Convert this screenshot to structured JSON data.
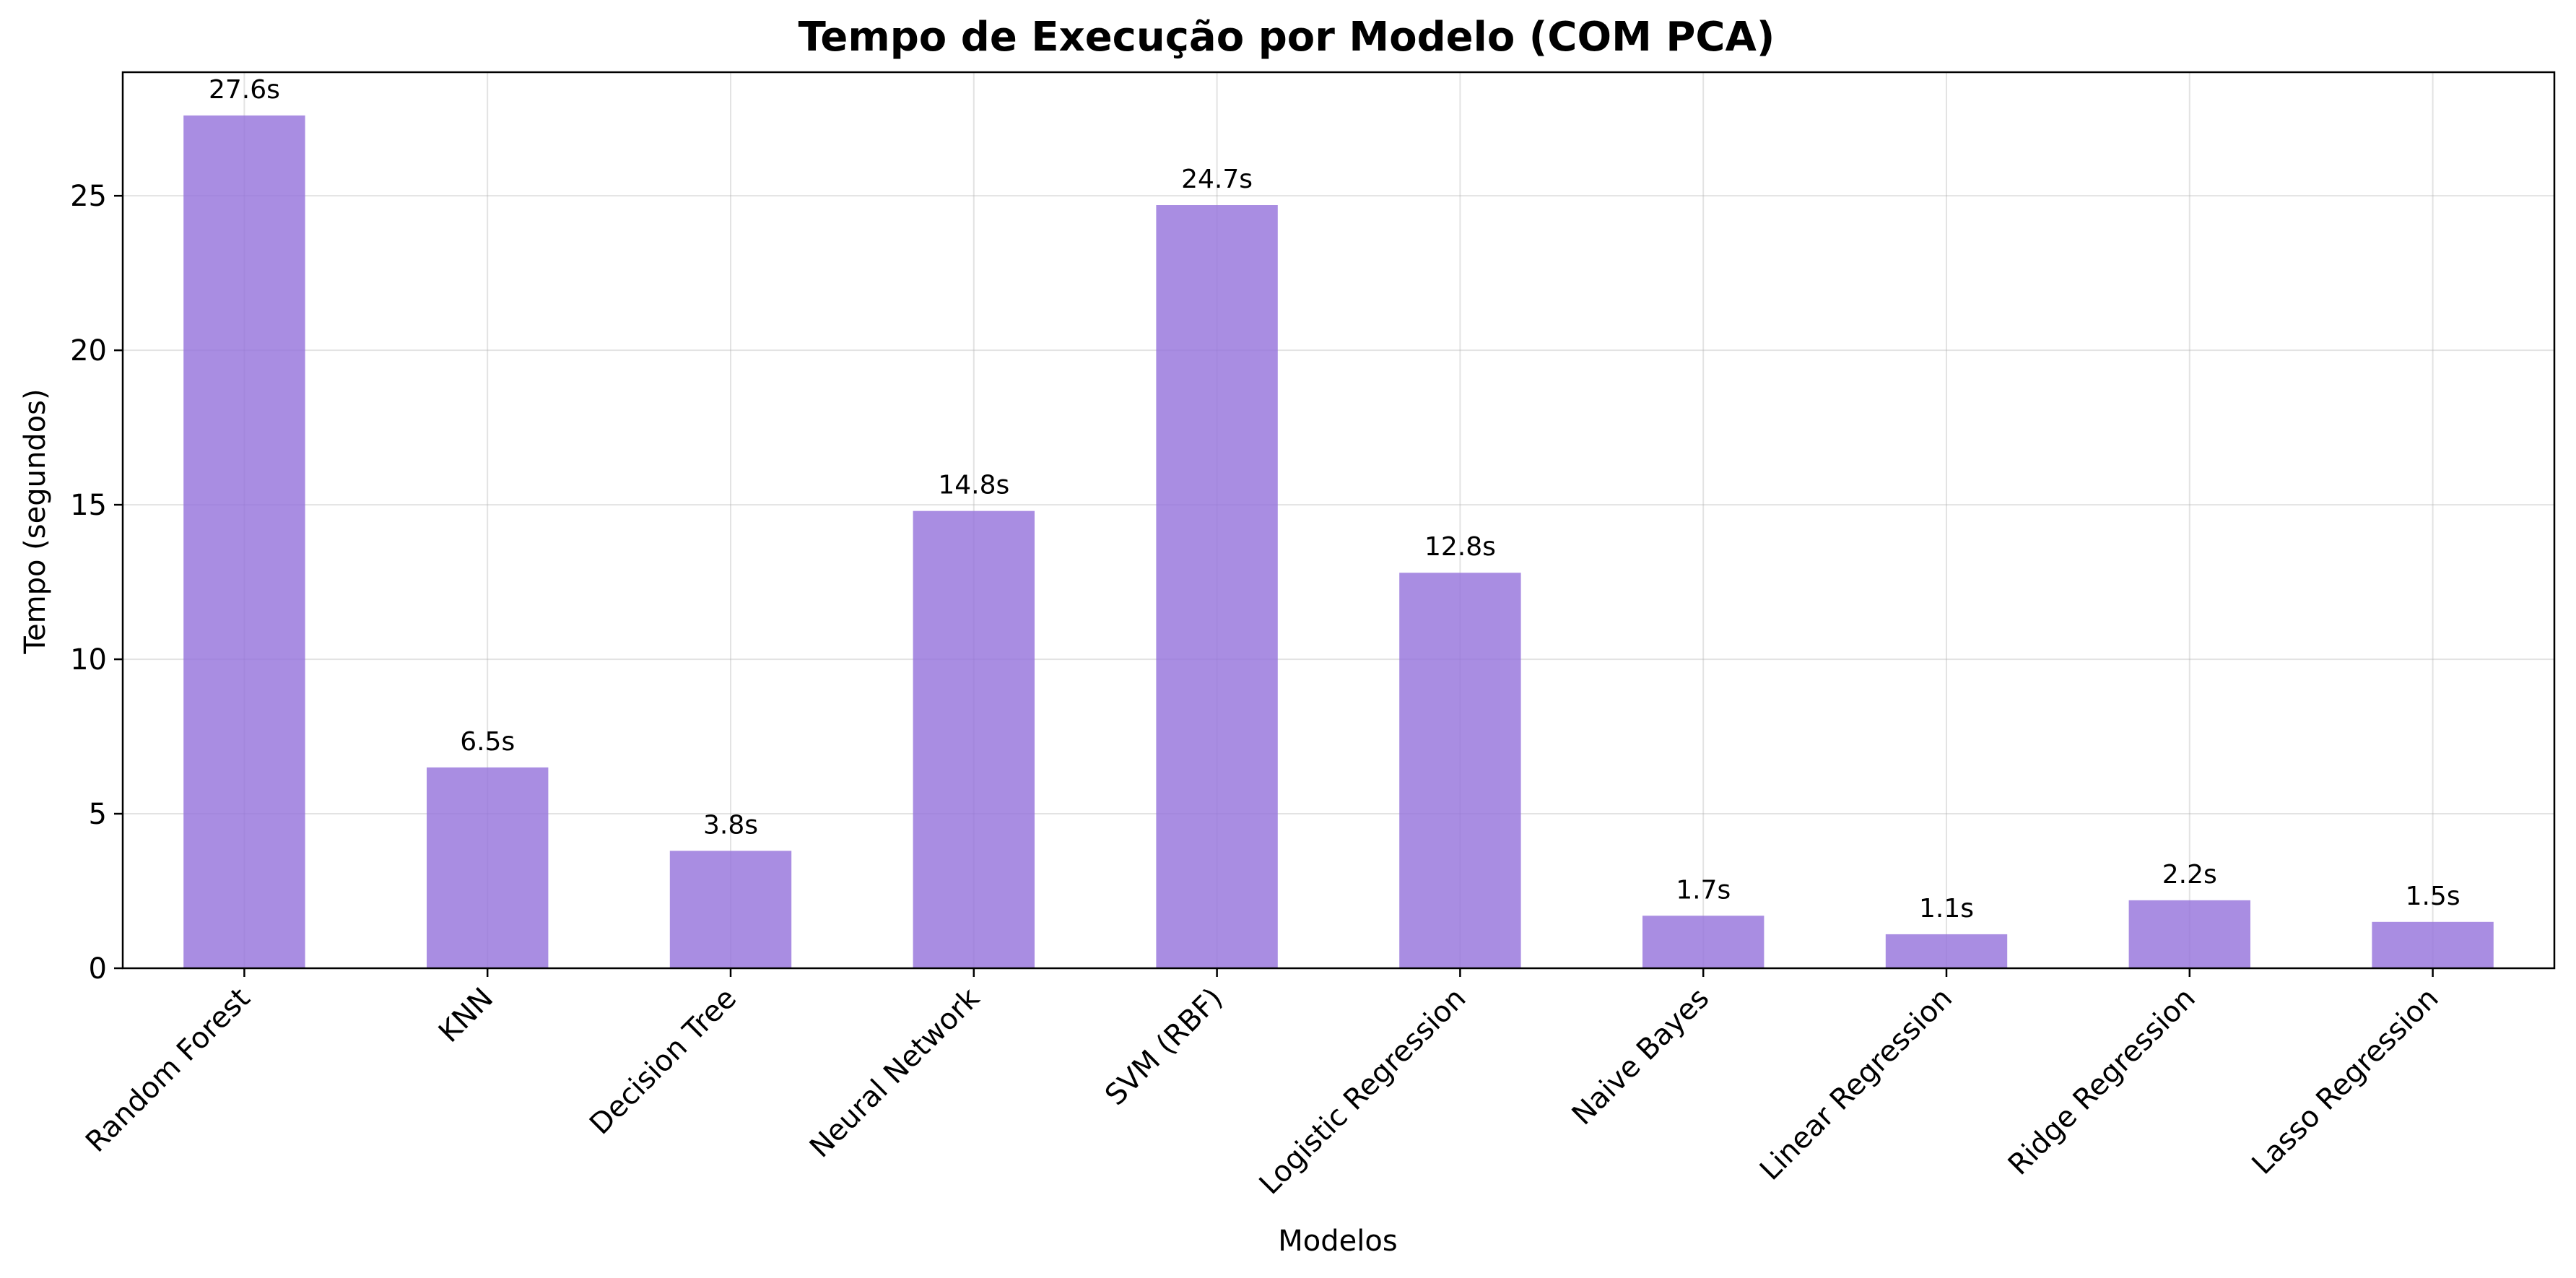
{
  "chart_data": {
    "type": "bar",
    "title": "Tempo de Execução por Modelo (COM PCA)",
    "xlabel": "Modelos",
    "ylabel": "Tempo (segundos)",
    "categories": [
      "Random Forest",
      "KNN",
      "Decision Tree",
      "Neural Network",
      "SVM (RBF)",
      "Logistic Regression",
      "Naive Bayes",
      "Linear Regression",
      "Ridge Regression",
      "Lasso Regression"
    ],
    "values": [
      27.6,
      6.5,
      3.8,
      14.8,
      24.7,
      12.8,
      1.7,
      1.1,
      2.2,
      1.5
    ],
    "data_labels": [
      "27.6s",
      "6.5s",
      "3.8s",
      "14.8s",
      "24.7s",
      "12.8s",
      "1.7s",
      "1.1s",
      "2.2s",
      "1.5s"
    ],
    "ylim": [
      0,
      29
    ],
    "yticks": [
      0,
      5,
      10,
      15,
      20,
      25
    ],
    "grid": true,
    "bar_color": "#9370DB",
    "bar_opacity": 0.8
  }
}
